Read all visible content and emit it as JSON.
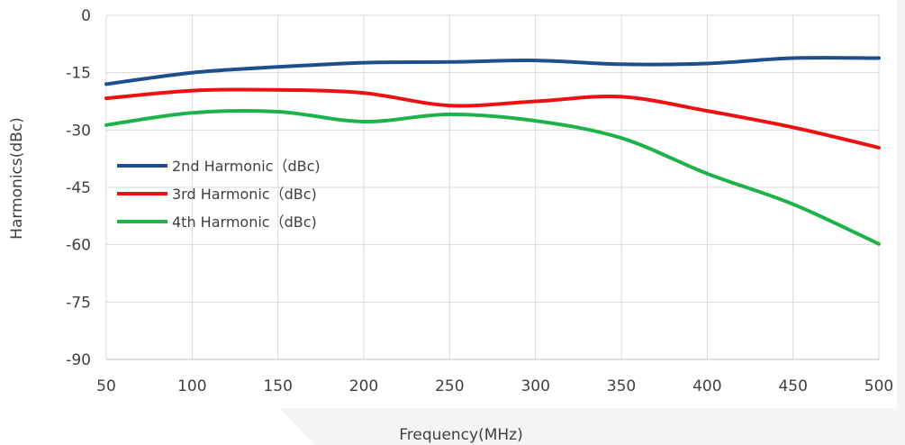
{
  "chart_data": {
    "type": "line",
    "title": "",
    "xlabel": "Frequency(MHz)",
    "ylabel": "Harmonics(dBc)",
    "xlim": [
      50,
      500
    ],
    "ylim": [
      -90,
      0
    ],
    "x_ticks": [
      50,
      100,
      150,
      200,
      250,
      300,
      350,
      400,
      450,
      500
    ],
    "y_ticks": [
      0,
      -15,
      -30,
      -45,
      -60,
      -75,
      -90
    ],
    "grid": true,
    "legend_position": "left-middle",
    "x": [
      50,
      100,
      150,
      200,
      250,
      300,
      350,
      400,
      450,
      500
    ],
    "series": [
      {
        "name": "2nd Harmonic（dBc)",
        "color": "#1f4e8c",
        "values": [
          -18,
          -15,
          -13.5,
          -12.4,
          -12.2,
          -11.8,
          -12.8,
          -12.6,
          -11.2,
          -11.2
        ]
      },
      {
        "name": "3rd Harmonic（dBc)",
        "color": "#ee1111",
        "values": [
          -21.7,
          -19.7,
          -19.5,
          -20.3,
          -23.6,
          -22.5,
          -21.3,
          -25,
          -29.3,
          -34.6
        ]
      },
      {
        "name": "4th Harmonic（dBc)",
        "color": "#1db34a",
        "values": [
          -28.7,
          -25.5,
          -25.2,
          -27.8,
          -25.9,
          -27.6,
          -32.1,
          -41.4,
          -49.4,
          -59.8
        ]
      }
    ]
  }
}
